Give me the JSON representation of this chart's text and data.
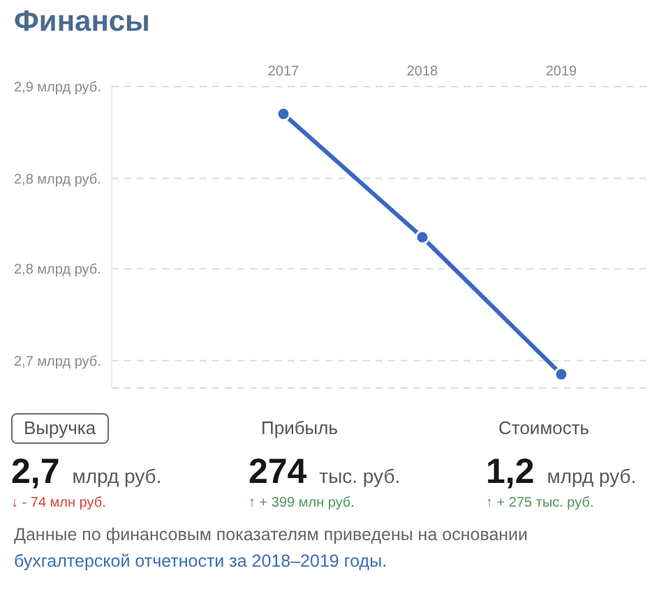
{
  "chart_data": [
    {
      "type": "line",
      "title": "Финансы",
      "categories": [
        "2017",
        "2018",
        "2019"
      ],
      "values": [
        2.88,
        2.79,
        2.69
      ],
      "color": "#3b67c2",
      "ylim": [
        2.68,
        2.9
      ],
      "yticks": [
        {
          "value": 2.9,
          "label": "2,9 млрд руб."
        },
        {
          "value": 2.833,
          "label": "2,8 млрд руб."
        },
        {
          "value": 2.767,
          "label": "2,8 млрд руб."
        },
        {
          "value": 2.7,
          "label": "2,7 млрд руб."
        }
      ],
      "grid": "y",
      "marker": "circle",
      "line_style": "solid"
    },
    {
      "type": "other",
      "categories": [
        "Выручка",
        "Прибыль",
        "Стоимость"
      ],
      "value_labels": [
        "2,7 млрд руб.",
        "274 тыс. руб.",
        "1,2 млрд руб."
      ],
      "annotations": [
        "↓ - 74 млн руб.",
        "↑ + 399 млн руб.",
        "↑ + 275 тыс. руб.",
        "Данные по финансовым показателям приведены на основании",
        "бухгалтерской отчетности за 2018–2019 годы."
      ],
      "colors": [
        "#d0463c",
        "#4c9a5c",
        "#4c9a5c"
      ]
    }
  ]
}
